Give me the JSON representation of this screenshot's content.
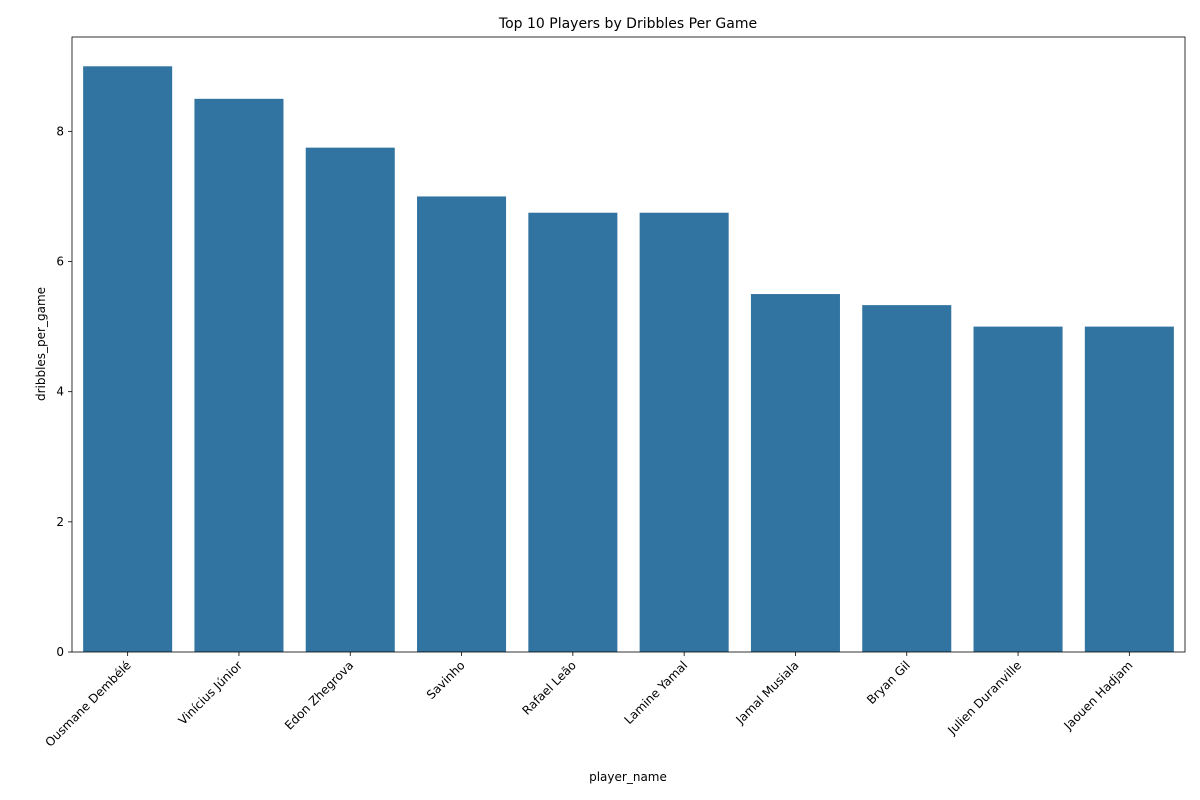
{
  "chart_data": {
    "type": "bar",
    "title": "Top 10 Players by Dribbles Per Game",
    "xlabel": "player_name",
    "ylabel": "dribbles_per_game",
    "categories": [
      "Ousmane Dembélé",
      "Vinícius Júnior",
      "Edon Zhegrova",
      "Savinho",
      "Rafael Leão",
      "Lamine Yamal",
      "Jamal Musiala",
      "Bryan Gil",
      "Julien Duranville",
      "Jaouen Hadjam"
    ],
    "values": [
      9.0,
      8.5,
      7.75,
      7.0,
      6.75,
      6.75,
      5.5,
      5.33,
      5.0,
      5.0
    ],
    "ylim": [
      0,
      9.45
    ],
    "yticks": [
      0,
      2,
      4,
      6,
      8
    ],
    "bar_color": "#3274a1",
    "grid": false,
    "legend": "none"
  }
}
